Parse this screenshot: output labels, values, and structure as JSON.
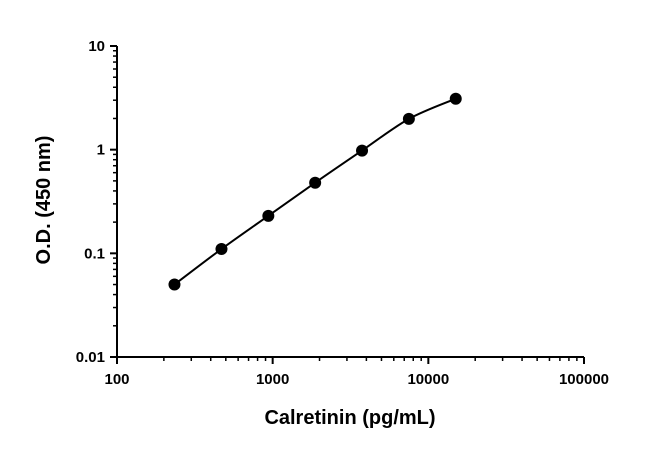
{
  "chart_data": {
    "type": "scatter",
    "xlabel": "Calretinin (pg/mL)",
    "ylabel": "O.D. (450 nm)",
    "x_scale": "log",
    "y_scale": "log",
    "xlim": [
      100,
      100000
    ],
    "ylim": [
      0.01,
      10
    ],
    "x_ticks": [
      "100",
      "1000",
      "10000",
      "100000"
    ],
    "y_ticks": [
      "0.01",
      "0.1",
      "1",
      "10"
    ],
    "grid": false,
    "series": [
      {
        "x": [
          234,
          469,
          938,
          1875,
          3750,
          7500,
          15000
        ],
        "y": [
          0.05,
          0.11,
          0.23,
          0.48,
          0.98,
          1.98,
          3.1
        ],
        "color": "#000000",
        "marker": "circle",
        "fit_line": true
      }
    ]
  }
}
